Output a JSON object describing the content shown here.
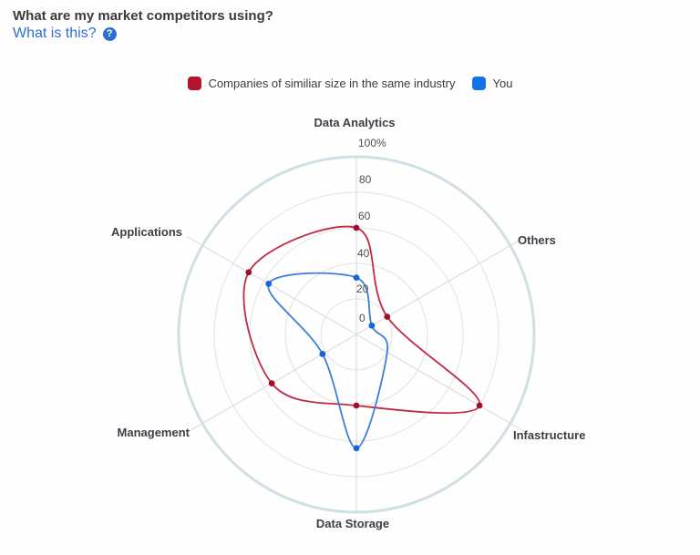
{
  "header": {
    "title": "What are my market competitors using?",
    "link_label": "What is this?",
    "help_glyph": "?",
    "link_color": "#2b6fd3"
  },
  "chart_data": {
    "type": "radar",
    "max": 100,
    "categories": [
      "Data Analytics",
      "Others",
      "Infastructure",
      "Data Storage",
      "Management",
      "Applications"
    ],
    "series": [
      {
        "name": "Companies of similiar size in the same industry",
        "color": "#b5122b",
        "line_color": "#c22944",
        "marker_color": "#9f1026",
        "values": [
          60,
          20,
          80,
          40,
          55,
          70
        ]
      },
      {
        "name": "You",
        "color": "#1473e6",
        "line_color": "#3c7fd9",
        "marker_color": "#1565d8",
        "values": [
          32,
          10,
          20,
          64,
          22,
          57
        ],
        "hidden_markers": [
          2
        ]
      }
    ],
    "radial_ticks": [
      {
        "value": 100,
        "label": "100%"
      },
      {
        "value": 80,
        "label": "80"
      },
      {
        "value": 60,
        "label": "60"
      },
      {
        "value": 40,
        "label": "40"
      },
      {
        "value": 20,
        "label": "20"
      },
      {
        "value": 0,
        "label": "0"
      }
    ],
    "grid": {
      "rings": [
        20,
        40,
        60,
        80,
        100
      ],
      "ring_color": "#e2e2e2",
      "outer_ring_color": "#cfdfe4",
      "spoke_color": "#d7d7d7",
      "legend_position": "top-center",
      "fill": "none"
    }
  }
}
